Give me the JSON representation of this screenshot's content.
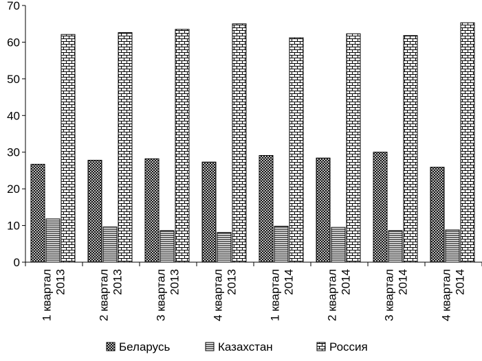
{
  "chart_data": {
    "type": "bar",
    "title": "",
    "xlabel": "",
    "ylabel": "",
    "ylim": [
      0,
      70
    ],
    "yticks": [
      0,
      10,
      20,
      30,
      40,
      50,
      60,
      70
    ],
    "grid": false,
    "legend_position": "bottom",
    "categories": [
      [
        "1 квартал",
        "2013"
      ],
      [
        "2 квартал",
        "2013"
      ],
      [
        "3 квартал",
        "2013"
      ],
      [
        "4 квартал",
        "2013"
      ],
      [
        "1 квартал",
        "2014"
      ],
      [
        "2 квартал",
        "2014"
      ],
      [
        "3 квартал",
        "2014"
      ],
      [
        "4 квартал",
        "2014"
      ]
    ],
    "series": [
      {
        "name": "Беларусь",
        "pattern": "crosshatch",
        "values": [
          26.7,
          27.8,
          28.2,
          27.3,
          29.1,
          28.4,
          30.0,
          25.9
        ]
      },
      {
        "name": "Казахстан",
        "pattern": "horizontal-lines",
        "values": [
          11.8,
          9.6,
          8.6,
          8.1,
          9.8,
          9.5,
          8.6,
          8.8
        ]
      },
      {
        "name": "Россия",
        "pattern": "brick",
        "values": [
          62.1,
          62.6,
          63.5,
          65.0,
          61.2,
          62.3,
          61.8,
          65.3
        ]
      }
    ]
  }
}
